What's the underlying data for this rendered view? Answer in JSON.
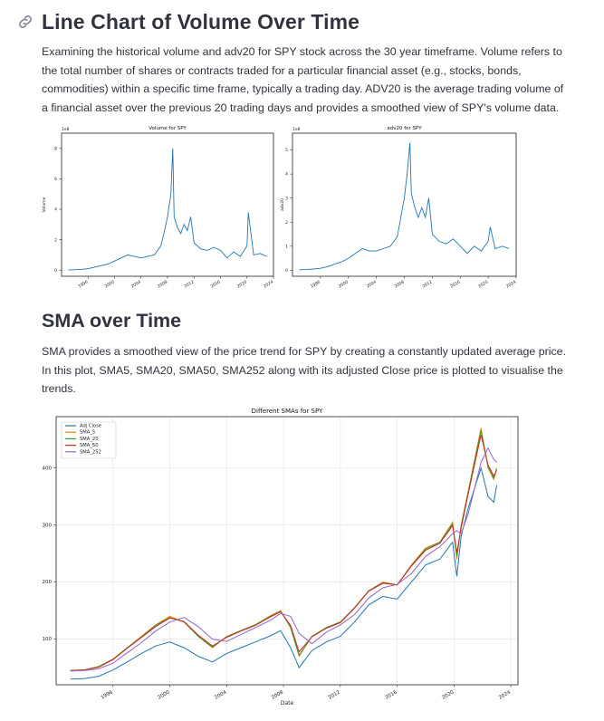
{
  "section1": {
    "title": "Line Chart of Volume Over Time",
    "paragraph": "Examining the historical volume and adv20 for SPY stock across the 30 year timeframe. Volume refers to the total number of shares or contracts traded for a particular financial asset (e.g., stocks, bonds, commodities) within a specific time frame, typically a trading day. ADV20 is the average trading volume of a financial asset over the previous 20 trading days and provides a smoothed view of SPY's volume data."
  },
  "section2": {
    "title": "SMA over Time",
    "paragraph": "SMA provides a smoothed view of the price trend for SPY by creating a constantly updated average price. In this plot, SMA5, SMA20, SMA50, SMA252 along with its adjusted Close price is plotted to visualise the trends."
  },
  "chart_data": [
    {
      "type": "line",
      "title": "Volume for SPY",
      "ylabel": "Volume",
      "scale_label": "1e8",
      "xlim": [
        1992,
        2024
      ],
      "ylim": [
        -0.4,
        9
      ],
      "x_ticks": [
        "1996",
        "2000",
        "2004",
        "2008",
        "2012",
        "2016",
        "2020",
        "2024"
      ],
      "y_ticks": [
        "0",
        "2",
        "4",
        "6",
        "8"
      ],
      "color": "#1f77b4",
      "series": [
        {
          "x": [
            1993,
            1994,
            1995,
            1996,
            1997,
            1998,
            1999,
            2000,
            2001,
            2002,
            2003,
            2004,
            2005,
            2006,
            2007,
            2007.5,
            2008,
            2008.5,
            2008.8,
            2009,
            2009.5,
            2010,
            2010.5,
            2011,
            2011.5,
            2012,
            2013,
            2014,
            2015,
            2016,
            2017,
            2018,
            2019,
            2020,
            2020.2,
            2021,
            2022,
            2023
          ],
          "y": [
            0.01,
            0.03,
            0.05,
            0.1,
            0.2,
            0.3,
            0.4,
            0.6,
            0.8,
            1.0,
            0.9,
            0.8,
            0.9,
            1.0,
            1.6,
            2.5,
            3.5,
            5.0,
            8.0,
            3.5,
            2.8,
            2.4,
            3.0,
            2.6,
            3.5,
            1.8,
            1.4,
            1.3,
            1.5,
            1.3,
            0.8,
            1.2,
            0.9,
            1.6,
            3.8,
            1.0,
            1.1,
            0.9
          ]
        }
      ]
    },
    {
      "type": "line",
      "title": "adv20 for SPY",
      "ylabel": "adv20",
      "scale_label": "1e8",
      "xlim": [
        1992,
        2024
      ],
      "ylim": [
        -0.25,
        5.7
      ],
      "x_ticks": [
        "1996",
        "2000",
        "2004",
        "2008",
        "2012",
        "2016",
        "2020",
        "2024"
      ],
      "y_ticks": [
        "0",
        "1",
        "2",
        "3",
        "4",
        "5"
      ],
      "color": "#1f77b4",
      "series": [
        {
          "x": [
            1993,
            1994,
            1995,
            1996,
            1997,
            1998,
            1999,
            2000,
            2001,
            2002,
            2003,
            2004,
            2005,
            2006,
            2007,
            2007.5,
            2008,
            2008.4,
            2008.8,
            2009,
            2009.5,
            2010,
            2010.5,
            2011,
            2011.5,
            2012,
            2013,
            2014,
            2015,
            2016,
            2017,
            2018,
            2019,
            2020,
            2020.3,
            2021,
            2022,
            2023
          ],
          "y": [
            0.02,
            0.03,
            0.05,
            0.08,
            0.15,
            0.25,
            0.35,
            0.5,
            0.7,
            0.9,
            0.8,
            0.8,
            0.9,
            1.0,
            1.4,
            2.2,
            3.0,
            4.0,
            5.3,
            3.2,
            2.6,
            2.2,
            2.6,
            2.2,
            3.0,
            1.5,
            1.2,
            1.1,
            1.3,
            1.0,
            0.7,
            1.0,
            0.8,
            1.2,
            1.8,
            0.9,
            1.0,
            0.9
          ]
        }
      ]
    },
    {
      "type": "line",
      "title": "Different SMAs for SPY",
      "xlabel": "Date",
      "xlim": [
        1992,
        2024.5
      ],
      "ylim": [
        20,
        490
      ],
      "x_ticks": [
        "1996",
        "2000",
        "2004",
        "2008",
        "2012",
        "2016",
        "2020",
        "2024"
      ],
      "y_ticks": [
        "100",
        "200",
        "300",
        "400"
      ],
      "legend": "top-left",
      "grid": true,
      "series": [
        {
          "name": "Adj Close",
          "color": "#1f77b4",
          "x": [
            1993,
            1994,
            1995,
            1996,
            1997,
            1998,
            1999,
            2000,
            2001,
            2002,
            2003,
            2004,
            2005,
            2006,
            2007,
            2007.8,
            2008.5,
            2009.1,
            2010,
            2011,
            2012,
            2013,
            2014,
            2015,
            2016,
            2017,
            2018,
            2019,
            2019.9,
            2020.2,
            2020.5,
            2021,
            2021.9,
            2022.4,
            2022.8,
            2023
          ],
          "y": [
            30,
            31,
            35,
            46,
            60,
            75,
            88,
            95,
            85,
            70,
            60,
            75,
            85,
            95,
            105,
            115,
            85,
            50,
            80,
            95,
            105,
            130,
            160,
            175,
            170,
            200,
            230,
            240,
            270,
            210,
            280,
            330,
            400,
            350,
            340,
            370
          ]
        },
        {
          "name": "SMA_5",
          "color": "#ff7f0e",
          "x": [
            1993,
            1994,
            1995,
            1996,
            1997,
            1998,
            1999,
            2000,
            2001,
            2002,
            2003,
            2004,
            2005,
            2006,
            2007,
            2007.8,
            2008.5,
            2009.1,
            2010,
            2011,
            2012,
            2013,
            2014,
            2015,
            2016,
            2017,
            2018,
            2019,
            2019.9,
            2020.2,
            2020.5,
            2021,
            2021.9,
            2022.4,
            2022.8,
            2023
          ],
          "y": [
            45,
            46,
            52,
            65,
            85,
            105,
            125,
            140,
            130,
            105,
            85,
            105,
            115,
            125,
            140,
            150,
            120,
            70,
            105,
            120,
            130,
            155,
            185,
            200,
            195,
            230,
            260,
            270,
            305,
            240,
            300,
            360,
            470,
            400,
            380,
            400
          ]
        },
        {
          "name": "SMA_20",
          "color": "#2ca02c",
          "x": [
            1993,
            1994,
            1995,
            1996,
            1997,
            1998,
            1999,
            2000,
            2001,
            2002,
            2003,
            2004,
            2005,
            2006,
            2007,
            2007.8,
            2008.5,
            2009.1,
            2010,
            2011,
            2012,
            2013,
            2014,
            2015,
            2016,
            2017,
            2018,
            2019,
            2019.9,
            2020.2,
            2020.5,
            2021,
            2021.9,
            2022.4,
            2022.8,
            2023
          ],
          "y": [
            45,
            46,
            52,
            65,
            85,
            104,
            124,
            138,
            130,
            105,
            86,
            104,
            115,
            125,
            139,
            149,
            121,
            72,
            105,
            120,
            130,
            155,
            185,
            199,
            195,
            229,
            258,
            270,
            302,
            245,
            298,
            358,
            465,
            402,
            382,
            398
          ]
        },
        {
          "name": "SMA_50",
          "color": "#d62728",
          "x": [
            1993,
            1994,
            1995,
            1996,
            1997,
            1998,
            1999,
            2000,
            2001,
            2002,
            2003,
            2004,
            2005,
            2006,
            2007,
            2007.8,
            2008.5,
            2009.1,
            2010,
            2011,
            2012,
            2013,
            2014,
            2015,
            2016,
            2017,
            2018,
            2019,
            2019.9,
            2020.2,
            2020.5,
            2021,
            2021.9,
            2022.4,
            2022.8,
            2023
          ],
          "y": [
            45,
            46,
            51,
            64,
            84,
            103,
            122,
            137,
            131,
            107,
            88,
            103,
            114,
            124,
            138,
            148,
            124,
            78,
            104,
            119,
            129,
            154,
            184,
            198,
            195,
            228,
            256,
            268,
            299,
            252,
            294,
            355,
            458,
            405,
            386,
            396
          ]
        },
        {
          "name": "SMA_252",
          "color": "#9467bd",
          "x": [
            1993,
            1994,
            1995,
            1996,
            1997,
            1998,
            1999,
            2000,
            2001,
            2002,
            2003,
            2004,
            2005,
            2006,
            2007,
            2007.8,
            2008.5,
            2009.1,
            2010,
            2011,
            2012,
            2013,
            2014,
            2015,
            2016,
            2017,
            2018,
            2019,
            2019.9,
            2020.2,
            2020.5,
            2021,
            2021.9,
            2022.4,
            2022.8,
            2023
          ],
          "y": [
            44,
            45,
            48,
            58,
            76,
            94,
            114,
            130,
            138,
            122,
            100,
            96,
            108,
            120,
            132,
            145,
            140,
            110,
            92,
            112,
            125,
            143,
            172,
            190,
            196,
            215,
            245,
            262,
            285,
            290,
            285,
            320,
            410,
            435,
            415,
            410
          ]
        }
      ]
    }
  ]
}
